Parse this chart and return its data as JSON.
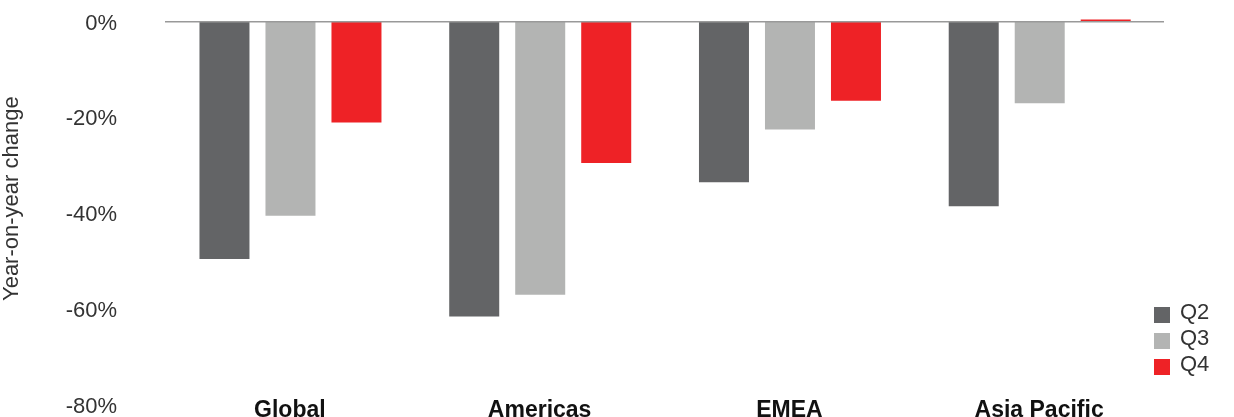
{
  "chart_data": {
    "type": "bar",
    "ylabel": "Year-on-year change",
    "categories": [
      "Global",
      "Americas",
      "EMEA",
      "Asia Pacific"
    ],
    "series": [
      {
        "name": "Q2",
        "color": "#636466",
        "values": [
          -49.5,
          -61.5,
          -33.5,
          -38.5
        ]
      },
      {
        "name": "Q3",
        "color": "#b3b4b3",
        "values": [
          -40.5,
          -57,
          -22.5,
          -17
        ]
      },
      {
        "name": "Q4",
        "color": "#ee2226",
        "values": [
          -21,
          -29.5,
          -16.5,
          0.5
        ]
      }
    ],
    "ylim": [
      -80,
      1
    ],
    "yticks": [
      {
        "value": 0,
        "label": "0%"
      },
      {
        "value": -20,
        "label": "-20%"
      },
      {
        "value": -40,
        "label": "-40%"
      },
      {
        "value": -60,
        "label": "-60%"
      },
      {
        "value": -80,
        "label": "-80%"
      }
    ],
    "ref_lines": [
      {
        "axis": "y",
        "value": 0,
        "color": "#999999"
      }
    ],
    "grid": false,
    "legend": "bottom right"
  }
}
